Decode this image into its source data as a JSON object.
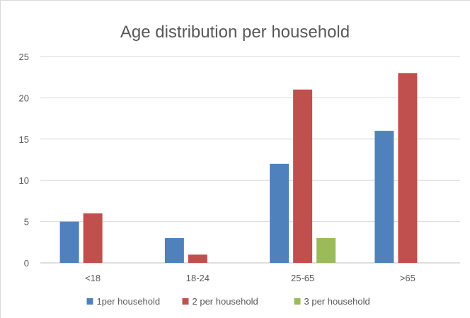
{
  "chart_data": {
    "type": "bar",
    "title": "Age distribution per household",
    "categories": [
      "<18",
      "18-24",
      "25-65",
      ">65"
    ],
    "series": [
      {
        "name": "1per household",
        "color": "#4f81bd",
        "values": [
          5,
          3,
          12,
          16
        ]
      },
      {
        "name": "2 per household",
        "color": "#c0504d",
        "values": [
          6,
          1,
          21,
          23
        ]
      },
      {
        "name": "3 per household",
        "color": "#9bbb59",
        "values": [
          0,
          0,
          3,
          0
        ]
      }
    ],
    "ylim": [
      0,
      25
    ],
    "yticks": [
      0,
      5,
      10,
      15,
      20,
      25
    ],
    "grid": true,
    "legend_position": "bottom"
  }
}
